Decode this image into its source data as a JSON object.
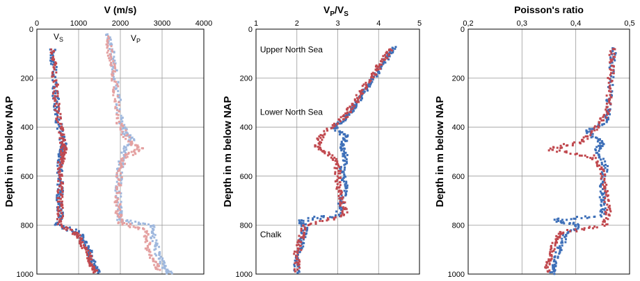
{
  "colors": {
    "blue": "#3d6fb8",
    "red": "#c0484e",
    "light_blue": "#9fb8de",
    "light_red": "#e4a1a1",
    "grid": "#9a9a9a",
    "axis": "#000000"
  },
  "chart_data": [
    {
      "type": "scatter",
      "title": "V (m/s)",
      "ylabel": "Depth in m below NAP",
      "x_ticks": [
        "0",
        "1000",
        "2000",
        "3000",
        "4000"
      ],
      "y_ticks": [
        "0",
        "200",
        "400",
        "600",
        "800",
        "1000"
      ],
      "xlim": [
        0,
        4000
      ],
      "ylim": [
        0,
        1000
      ],
      "y_inverted": true,
      "grid": true,
      "annotations": [
        {
          "text": "V",
          "sub": "S",
          "x": 600,
          "y": 105
        },
        {
          "text": "V",
          "sub": "P",
          "x": 2450,
          "y": 110
        }
      ],
      "series": [
        {
          "color_key": "blue",
          "values": [
            [
              380,
              80
            ],
            [
              400,
              150
            ],
            [
              430,
              250
            ],
            [
              480,
              320
            ],
            [
              520,
              380
            ],
            [
              600,
              440
            ],
            [
              650,
              480
            ],
            [
              600,
              500
            ],
            [
              560,
              540
            ],
            [
              560,
              600
            ],
            [
              560,
              660
            ],
            [
              540,
              700
            ],
            [
              560,
              750
            ],
            [
              500,
              800
            ],
            [
              1000,
              830
            ],
            [
              1180,
              880
            ],
            [
              1280,
              920
            ],
            [
              1370,
              960
            ],
            [
              1480,
              1000
            ]
          ]
        },
        {
          "color_key": "red",
          "values": [
            [
              390,
              80
            ],
            [
              420,
              160
            ],
            [
              450,
              260
            ],
            [
              500,
              340
            ],
            [
              580,
              420
            ],
            [
              650,
              480
            ],
            [
              620,
              510
            ],
            [
              570,
              550
            ],
            [
              570,
              620
            ],
            [
              560,
              680
            ],
            [
              560,
              740
            ],
            [
              560,
              800
            ],
            [
              1000,
              840
            ],
            [
              1100,
              880
            ],
            [
              1220,
              920
            ],
            [
              1330,
              960
            ],
            [
              1420,
              1000
            ]
          ]
        },
        {
          "color_key": "light_blue",
          "values": [
            [
              1700,
              20
            ],
            [
              1780,
              90
            ],
            [
              1860,
              160
            ],
            [
              1920,
              250
            ],
            [
              1990,
              360
            ],
            [
              2100,
              420
            ],
            [
              2300,
              450
            ],
            [
              2100,
              500
            ],
            [
              2000,
              560
            ],
            [
              1950,
              640
            ],
            [
              1960,
              720
            ],
            [
              1980,
              780
            ],
            [
              2750,
              800
            ],
            [
              2800,
              860
            ],
            [
              2900,
              920
            ],
            [
              3050,
              970
            ],
            [
              3200,
              1000
            ]
          ]
        },
        {
          "color_key": "light_red",
          "values": [
            [
              1680,
              30
            ],
            [
              1750,
              100
            ],
            [
              1840,
              170
            ],
            [
              1900,
              270
            ],
            [
              1960,
              380
            ],
            [
              2200,
              460
            ],
            [
              2500,
              490
            ],
            [
              2100,
              520
            ],
            [
              1980,
              580
            ],
            [
              1930,
              660
            ],
            [
              1940,
              740
            ],
            [
              2000,
              790
            ],
            [
              2600,
              820
            ],
            [
              2650,
              880
            ],
            [
              2780,
              940
            ],
            [
              2950,
              990
            ]
          ]
        }
      ]
    },
    {
      "type": "scatter",
      "title": "V",
      "title_sub_p": "P",
      "title_slash": "/V",
      "title_sub_s": "S",
      "ylabel": "Depth in m below NAP",
      "x_ticks": [
        "1",
        "2",
        "3",
        "4",
        "5"
      ],
      "y_ticks": [
        "0",
        "200",
        "400",
        "600",
        "800",
        "1000"
      ],
      "xlim": [
        1,
        5
      ],
      "ylim": [
        0,
        1000
      ],
      "y_inverted": true,
      "grid": true,
      "annotations": [
        {
          "text": "Upper North Sea",
          "x": 1.1,
          "y": 95
        },
        {
          "text": "Lower North Sea",
          "x": 1.1,
          "y": 350
        },
        {
          "text": "Chalk",
          "x": 1.1,
          "y": 850
        }
      ],
      "series": [
        {
          "color_key": "blue",
          "values": [
            [
              4.4,
              75
            ],
            [
              4.2,
              120
            ],
            [
              4.0,
              170
            ],
            [
              3.8,
              220
            ],
            [
              3.6,
              270
            ],
            [
              3.4,
              320
            ],
            [
              3.2,
              360
            ],
            [
              2.9,
              400
            ],
            [
              3.2,
              440
            ],
            [
              3.1,
              480
            ],
            [
              3.2,
              520
            ],
            [
              3.1,
              580
            ],
            [
              3.2,
              640
            ],
            [
              3.1,
              700
            ],
            [
              3.0,
              760
            ],
            [
              2.1,
              780
            ],
            [
              2.2,
              820
            ],
            [
              2.1,
              880
            ],
            [
              2.0,
              950
            ],
            [
              2.0,
              1000
            ]
          ]
        },
        {
          "color_key": "red",
          "values": [
            [
              4.3,
              80
            ],
            [
              4.1,
              130
            ],
            [
              3.9,
              180
            ],
            [
              3.7,
              230
            ],
            [
              3.5,
              280
            ],
            [
              3.3,
              330
            ],
            [
              3.1,
              370
            ],
            [
              2.6,
              430
            ],
            [
              2.5,
              480
            ],
            [
              2.9,
              520
            ],
            [
              3.0,
              580
            ],
            [
              3.0,
              640
            ],
            [
              3.1,
              700
            ],
            [
              3.2,
              760
            ],
            [
              2.2,
              800
            ],
            [
              2.1,
              860
            ],
            [
              2.0,
              920
            ],
            [
              2.0,
              990
            ]
          ]
        }
      ]
    },
    {
      "type": "scatter",
      "title": "Poisson's ratio",
      "ylabel": "Depth in m below NAP",
      "x_ticks": [
        "0,2",
        "0,3",
        "0,4",
        "0,5"
      ],
      "y_ticks": [
        "0",
        "200",
        "400",
        "600",
        "800",
        "1000"
      ],
      "xlim": [
        0.2,
        0.5
      ],
      "ylim": [
        0,
        1000
      ],
      "y_inverted": true,
      "grid": true,
      "annotations": [],
      "series": [
        {
          "color_key": "blue",
          "values": [
            [
              0.47,
              75
            ],
            [
              0.468,
              150
            ],
            [
              0.465,
              250
            ],
            [
              0.46,
              330
            ],
            [
              0.455,
              380
            ],
            [
              0.42,
              420
            ],
            [
              0.45,
              460
            ],
            [
              0.44,
              500
            ],
            [
              0.455,
              560
            ],
            [
              0.45,
              640
            ],
            [
              0.45,
              700
            ],
            [
              0.45,
              760
            ],
            [
              0.36,
              780
            ],
            [
              0.41,
              800
            ],
            [
              0.38,
              840
            ],
            [
              0.37,
              900
            ],
            [
              0.36,
              960
            ],
            [
              0.355,
              1000
            ]
          ]
        },
        {
          "color_key": "red",
          "values": [
            [
              0.468,
              80
            ],
            [
              0.466,
              160
            ],
            [
              0.463,
              260
            ],
            [
              0.458,
              340
            ],
            [
              0.44,
              400
            ],
            [
              0.41,
              460
            ],
            [
              0.35,
              490
            ],
            [
              0.43,
              520
            ],
            [
              0.45,
              580
            ],
            [
              0.455,
              660
            ],
            [
              0.46,
              740
            ],
            [
              0.455,
              800
            ],
            [
              0.37,
              830
            ],
            [
              0.36,
              880
            ],
            [
              0.35,
              940
            ],
            [
              0.345,
              990
            ]
          ]
        }
      ]
    }
  ]
}
